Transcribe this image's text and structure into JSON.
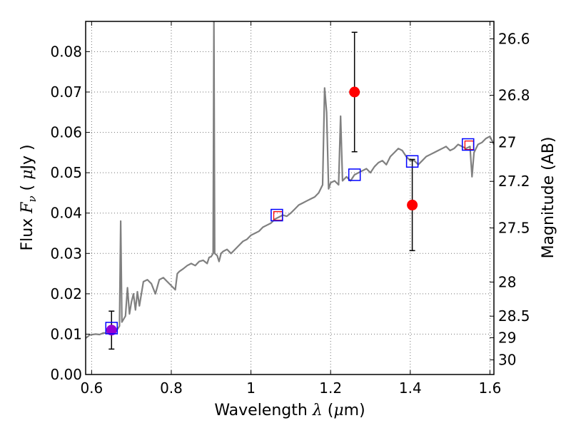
{
  "chart_data": {
    "type": "scatter",
    "xlabel": {
      "pre": "Wavelength  ",
      "sym": "λ",
      "unit_open": " (",
      "mu": "μ",
      "unit_close": "m)"
    },
    "ylabel": {
      "pre": "Flux  ",
      "sym": "F",
      "sub": "ν",
      "unit_open": "  ( ",
      "mu": "μ",
      "unit_close": "Jy )"
    },
    "y2label": "Magnitude (AB)",
    "xlim": [
      0.585,
      1.61
    ],
    "ylim": [
      0.0,
      0.0875
    ],
    "grid": true,
    "x_ticks": [
      {
        "v": 0.6,
        "t": "0.6"
      },
      {
        "v": 0.8,
        "t": "0.8"
      },
      {
        "v": 1.0,
        "t": "1"
      },
      {
        "v": 1.2,
        "t": "1.2"
      },
      {
        "v": 1.4,
        "t": "1.4"
      },
      {
        "v": 1.6,
        "t": "1.6"
      }
    ],
    "y_ticks": [
      {
        "v": 0.0,
        "t": "0.00"
      },
      {
        "v": 0.01,
        "t": "0.01"
      },
      {
        "v": 0.02,
        "t": "0.02"
      },
      {
        "v": 0.03,
        "t": "0.03"
      },
      {
        "v": 0.04,
        "t": "0.04"
      },
      {
        "v": 0.05,
        "t": "0.05"
      },
      {
        "v": 0.06,
        "t": "0.06"
      },
      {
        "v": 0.07,
        "t": "0.07"
      },
      {
        "v": 0.08,
        "t": "0.08"
      }
    ],
    "mag_ticks": [
      {
        "v": 26.6,
        "t": "26.6"
      },
      {
        "v": 26.8,
        "t": "26.8"
      },
      {
        "v": 27.0,
        "t": "27"
      },
      {
        "v": 27.2,
        "t": "27.2"
      },
      {
        "v": 27.5,
        "t": "27.5"
      },
      {
        "v": 28.0,
        "t": "28"
      },
      {
        "v": 28.5,
        "t": "28.5"
      },
      {
        "v": 29.0,
        "t": "29"
      },
      {
        "v": 30.0,
        "t": "30"
      }
    ],
    "observed": [
      {
        "x": 0.65,
        "y": 0.011,
        "err": 0.0047,
        "color": "#9400d3"
      },
      {
        "x": 1.26,
        "y": 0.07,
        "err": 0.0148,
        "color": "#ff0000"
      },
      {
        "x": 1.405,
        "y": 0.042,
        "err": 0.0113,
        "color": "#ff0000"
      }
    ],
    "model_blue": [
      {
        "x": 0.65,
        "y": 0.0115
      },
      {
        "x": 1.065,
        "y": 0.0395
      },
      {
        "x": 1.26,
        "y": 0.0495
      },
      {
        "x": 1.405,
        "y": 0.0528
      },
      {
        "x": 1.545,
        "y": 0.057
      }
    ],
    "model_red": [
      {
        "x": 1.068,
        "y": 0.0393
      },
      {
        "x": 1.548,
        "y": 0.0568
      }
    ],
    "spectrum": {
      "color": "#808080",
      "points": [
        [
          0.585,
          0.009
        ],
        [
          0.595,
          0.0098
        ],
        [
          0.61,
          0.01
        ],
        [
          0.62,
          0.0099
        ],
        [
          0.63,
          0.0103
        ],
        [
          0.64,
          0.0102
        ],
        [
          0.655,
          0.0108
        ],
        [
          0.665,
          0.0112
        ],
        [
          0.67,
          0.012
        ],
        [
          0.673,
          0.038
        ],
        [
          0.676,
          0.013
        ],
        [
          0.685,
          0.0145
        ],
        [
          0.69,
          0.0215
        ],
        [
          0.695,
          0.015
        ],
        [
          0.7,
          0.018
        ],
        [
          0.705,
          0.02
        ],
        [
          0.71,
          0.016
        ],
        [
          0.715,
          0.0205
        ],
        [
          0.72,
          0.017
        ],
        [
          0.73,
          0.023
        ],
        [
          0.74,
          0.0235
        ],
        [
          0.75,
          0.0225
        ],
        [
          0.76,
          0.02
        ],
        [
          0.77,
          0.0235
        ],
        [
          0.78,
          0.024
        ],
        [
          0.79,
          0.023
        ],
        [
          0.8,
          0.022
        ],
        [
          0.81,
          0.021
        ],
        [
          0.815,
          0.025
        ],
        [
          0.82,
          0.0255
        ],
        [
          0.83,
          0.0262
        ],
        [
          0.84,
          0.027
        ],
        [
          0.85,
          0.0275
        ],
        [
          0.86,
          0.027
        ],
        [
          0.87,
          0.028
        ],
        [
          0.88,
          0.0283
        ],
        [
          0.89,
          0.0275
        ],
        [
          0.895,
          0.029
        ],
        [
          0.9,
          0.0292
        ],
        [
          0.905,
          0.03
        ],
        [
          0.907,
          0.0875
        ],
        [
          0.909,
          0.03
        ],
        [
          0.915,
          0.0295
        ],
        [
          0.92,
          0.028
        ],
        [
          0.925,
          0.03
        ],
        [
          0.93,
          0.0305
        ],
        [
          0.94,
          0.031
        ],
        [
          0.95,
          0.03
        ],
        [
          0.96,
          0.031
        ],
        [
          0.97,
          0.032
        ],
        [
          0.98,
          0.033
        ],
        [
          0.99,
          0.0335
        ],
        [
          1.0,
          0.0345
        ],
        [
          1.01,
          0.035
        ],
        [
          1.02,
          0.0355
        ],
        [
          1.03,
          0.0365
        ],
        [
          1.04,
          0.037
        ],
        [
          1.05,
          0.0375
        ],
        [
          1.06,
          0.0385
        ],
        [
          1.07,
          0.039
        ],
        [
          1.08,
          0.0395
        ],
        [
          1.09,
          0.0392
        ],
        [
          1.1,
          0.04
        ],
        [
          1.11,
          0.041
        ],
        [
          1.12,
          0.042
        ],
        [
          1.13,
          0.0425
        ],
        [
          1.14,
          0.043
        ],
        [
          1.15,
          0.0435
        ],
        [
          1.16,
          0.044
        ],
        [
          1.17,
          0.045
        ],
        [
          1.18,
          0.047
        ],
        [
          1.185,
          0.071
        ],
        [
          1.19,
          0.065
        ],
        [
          1.195,
          0.046
        ],
        [
          1.2,
          0.0475
        ],
        [
          1.21,
          0.048
        ],
        [
          1.22,
          0.047
        ],
        [
          1.225,
          0.064
        ],
        [
          1.23,
          0.048
        ],
        [
          1.24,
          0.049
        ],
        [
          1.25,
          0.048
        ],
        [
          1.26,
          0.0495
        ],
        [
          1.27,
          0.05
        ],
        [
          1.28,
          0.0505
        ],
        [
          1.29,
          0.051
        ],
        [
          1.3,
          0.05
        ],
        [
          1.31,
          0.0515
        ],
        [
          1.32,
          0.0525
        ],
        [
          1.33,
          0.053
        ],
        [
          1.34,
          0.052
        ],
        [
          1.35,
          0.054
        ],
        [
          1.36,
          0.055
        ],
        [
          1.37,
          0.056
        ],
        [
          1.38,
          0.0555
        ],
        [
          1.39,
          0.054
        ],
        [
          1.4,
          0.053
        ],
        [
          1.41,
          0.053
        ],
        [
          1.42,
          0.052
        ],
        [
          1.43,
          0.053
        ],
        [
          1.44,
          0.054
        ],
        [
          1.45,
          0.0545
        ],
        [
          1.46,
          0.055
        ],
        [
          1.47,
          0.0555
        ],
        [
          1.48,
          0.056
        ],
        [
          1.49,
          0.0565
        ],
        [
          1.5,
          0.0555
        ],
        [
          1.51,
          0.056
        ],
        [
          1.52,
          0.057
        ],
        [
          1.53,
          0.0565
        ],
        [
          1.54,
          0.056
        ],
        [
          1.55,
          0.0565
        ],
        [
          1.555,
          0.049
        ],
        [
          1.56,
          0.055
        ],
        [
          1.57,
          0.057
        ],
        [
          1.58,
          0.0575
        ],
        [
          1.59,
          0.0585
        ],
        [
          1.6,
          0.059
        ],
        [
          1.61,
          0.057
        ]
      ]
    }
  }
}
